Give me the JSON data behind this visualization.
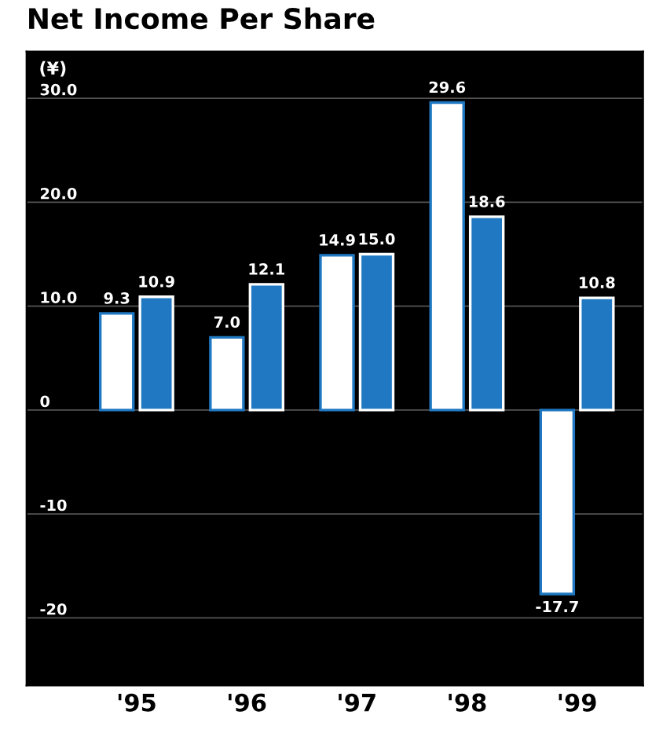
{
  "chart_data": {
    "type": "bar",
    "title": "Net Income Per Share",
    "ylabel": "(¥)",
    "categories": [
      "'95",
      "'96",
      "'97",
      "'98",
      "'99"
    ],
    "series": [
      {
        "color": "#ffffff",
        "values": [
          9.3,
          7.0,
          14.9,
          29.6,
          -17.7
        ],
        "value_labels": [
          "9.3",
          "7.0",
          "14.9",
          "29.6",
          "-17.7"
        ]
      },
      {
        "color": "#1f78c1",
        "values": [
          10.9,
          12.1,
          15.0,
          18.6,
          10.8
        ],
        "value_labels": [
          "10.9",
          "12.1",
          "15.0",
          "18.6",
          "10.8"
        ]
      }
    ],
    "ylim": [
      -26.5,
      34.5
    ],
    "yticks": [
      {
        "value": 30,
        "label": "30.0"
      },
      {
        "value": 20,
        "label": "20.0"
      },
      {
        "value": 10,
        "label": "10.0"
      },
      0,
      {
        "value": -10,
        "label": "-10"
      },
      {
        "value": -20,
        "label": "-20"
      }
    ],
    "grid": "y",
    "legend": false
  }
}
